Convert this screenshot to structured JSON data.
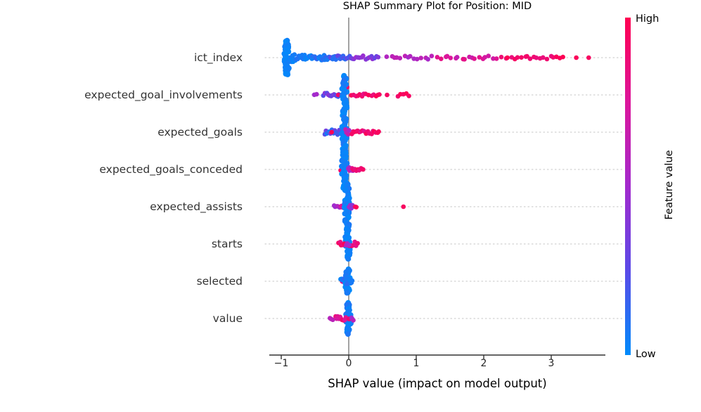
{
  "chart_data": {
    "type": "beeswarm",
    "title": "SHAP Summary Plot for Position: MID",
    "xlabel": "SHAP value (impact on model output)",
    "x_ticks": [
      {
        "value": -1,
        "label": "−1"
      },
      {
        "value": 0,
        "label": "0"
      },
      {
        "value": 1,
        "label": "1"
      },
      {
        "value": 2,
        "label": "2"
      },
      {
        "value": 3,
        "label": "3"
      }
    ],
    "x_range": [
      -1.18,
      3.8
    ],
    "zero_line": 0,
    "grid": "dotted-horizontal",
    "colorbar": {
      "label": "Feature value",
      "high": "High",
      "low": "Low",
      "color_low": "#008bfb",
      "color_high": "#ff0051",
      "stops": [
        {
          "t": 0,
          "c": "#008bfb"
        },
        {
          "t": 0.25,
          "c": "#5a4ae8"
        },
        {
          "t": 0.5,
          "c": "#a32acd"
        },
        {
          "t": 0.75,
          "c": "#dc169b"
        },
        {
          "t": 1,
          "c": "#ff0051"
        }
      ]
    },
    "features": [
      {
        "name": "ict_index",
        "swarm": [
          {
            "x0": -0.94,
            "x1": -0.9,
            "n": 34,
            "v0": 0,
            "v1": 0.05,
            "jy": 24,
            "stack": true
          },
          {
            "x0": -0.91,
            "x1": -0.78,
            "n": 13,
            "v0": 0,
            "v1": 0.07,
            "jy": 8
          },
          {
            "x0": -0.78,
            "x1": -0.55,
            "n": 14,
            "v0": 0,
            "v1": 0.1,
            "jy": 4
          },
          {
            "x0": -0.55,
            "x1": -0.28,
            "n": 20,
            "v0": 0.02,
            "v1": 0.16,
            "jy": 3.5
          },
          {
            "x0": -0.28,
            "x1": 0.02,
            "n": 18,
            "v0": 0.08,
            "v1": 0.3,
            "jy": 3
          },
          {
            "x0": 0.02,
            "x1": 0.45,
            "n": 16,
            "v0": 0.28,
            "v1": 0.5,
            "jy": 3
          },
          {
            "x0": 0.55,
            "x1": 1.25,
            "n": 14,
            "v0": 0.45,
            "v1": 0.62,
            "jy": 2.5
          },
          {
            "x0": 1.3,
            "x1": 2.2,
            "n": 18,
            "v0": 0.62,
            "v1": 0.85,
            "jy": 2.5
          },
          {
            "x0": 2.25,
            "x1": 3.2,
            "n": 20,
            "v0": 0.85,
            "v1": 1,
            "jy": 2.5
          },
          {
            "x0": 3.35,
            "x1": 3.38,
            "n": 1,
            "v0": 0.93,
            "v1": 1,
            "jy": 0
          },
          {
            "x0": 3.55,
            "x1": 3.58,
            "n": 1,
            "v0": 0.93,
            "v1": 1,
            "jy": 0
          }
        ]
      },
      {
        "name": "expected_goal_involvements",
        "swarm": [
          {
            "x0": -0.52,
            "x1": -0.46,
            "n": 2,
            "v0": 0.45,
            "v1": 0.55,
            "jy": 1
          },
          {
            "x0": -0.38,
            "x1": -0.13,
            "n": 12,
            "v0": 0.1,
            "v1": 0.45,
            "jy": 3
          },
          {
            "x0": -0.16,
            "x1": -0.13,
            "n": 1,
            "v0": 0.9,
            "v1": 1,
            "jy": 1
          },
          {
            "x0": -0.08,
            "x1": -0.02,
            "n": 6,
            "v0": 0.8,
            "v1": 1,
            "jy": 12
          },
          {
            "x0": -0.1,
            "x1": -0.02,
            "n": 30,
            "v0": 0,
            "v1": 0.1,
            "jy": 28,
            "stack": true
          },
          {
            "x0": 0.02,
            "x1": 0.3,
            "n": 9,
            "v0": 0.8,
            "v1": 1,
            "jy": 2.5
          },
          {
            "x0": 0.33,
            "x1": 0.47,
            "n": 5,
            "v0": 0.85,
            "v1": 1,
            "jy": 2
          },
          {
            "x0": 0.55,
            "x1": 0.57,
            "n": 1,
            "v0": 0.9,
            "v1": 1,
            "jy": 0
          },
          {
            "x0": 0.72,
            "x1": 0.92,
            "n": 5,
            "v0": 0.9,
            "v1": 1,
            "jy": 2
          }
        ]
      },
      {
        "name": "expected_goals",
        "swarm": [
          {
            "x0": -0.36,
            "x1": -0.13,
            "n": 14,
            "v0": 0.05,
            "v1": 0.35,
            "jy": 3.5
          },
          {
            "x0": -0.26,
            "x1": -0.24,
            "n": 1,
            "v0": 0.9,
            "v1": 1,
            "jy": 0
          },
          {
            "x0": -0.1,
            "x1": -0.03,
            "n": 30,
            "v0": 0,
            "v1": 0.08,
            "jy": 30,
            "stack": true
          },
          {
            "x0": -0.06,
            "x1": 0.02,
            "n": 4,
            "v0": 0.5,
            "v1": 0.7,
            "jy": 4
          },
          {
            "x0": 0.03,
            "x1": 0.26,
            "n": 10,
            "v0": 0.8,
            "v1": 1,
            "jy": 2.5
          },
          {
            "x0": 0.28,
            "x1": 0.46,
            "n": 8,
            "v0": 0.85,
            "v1": 1,
            "jy": 2.5
          }
        ]
      },
      {
        "name": "expected_goals_conceded",
        "swarm": [
          {
            "x0": -0.13,
            "x1": -0.1,
            "n": 2,
            "v0": 0.85,
            "v1": 1,
            "jy": 1.5
          },
          {
            "x0": -0.09,
            "x1": -0.04,
            "n": 30,
            "v0": 0,
            "v1": 0.06,
            "jy": 27,
            "stack": true
          },
          {
            "x0": -0.02,
            "x1": 0.07,
            "n": 6,
            "v0": 0.5,
            "v1": 0.7,
            "jy": 3
          },
          {
            "x0": 0.04,
            "x1": 0.23,
            "n": 9,
            "v0": 0.8,
            "v1": 1,
            "jy": 2.5
          }
        ]
      },
      {
        "name": "expected_assists",
        "swarm": [
          {
            "x0": -0.23,
            "x1": -0.13,
            "n": 5,
            "v0": 0.45,
            "v1": 0.6,
            "jy": 2
          },
          {
            "x0": -0.13,
            "x1": -0.07,
            "n": 4,
            "v0": 0.7,
            "v1": 0.9,
            "jy": 2
          },
          {
            "x0": -0.05,
            "x1": 0.0,
            "n": 34,
            "v0": 0,
            "v1": 0.08,
            "jy": 32,
            "stack": true
          },
          {
            "x0": 0.0,
            "x1": 0.06,
            "n": 6,
            "v0": 0.3,
            "v1": 0.55,
            "jy": 3
          },
          {
            "x0": 0.09,
            "x1": 0.12,
            "n": 2,
            "v0": 0.85,
            "v1": 1,
            "jy": 1.5
          },
          {
            "x0": 0.8,
            "x1": 0.82,
            "n": 1,
            "v0": 0.95,
            "v1": 1,
            "jy": 0
          }
        ]
      },
      {
        "name": "starts",
        "swarm": [
          {
            "x0": -0.04,
            "x1": 0.0,
            "n": 30,
            "v0": 0,
            "v1": 0.06,
            "jy": 21,
            "stack": true
          },
          {
            "x0": -0.02,
            "x1": 0.0,
            "n": 1,
            "v0": 0,
            "v1": 0.05,
            "jy": 27
          },
          {
            "x0": -0.16,
            "x1": 0.14,
            "n": 14,
            "v0": 0.75,
            "v1": 1,
            "jy": 3
          },
          {
            "x0": -0.06,
            "x1": 0.02,
            "n": 3,
            "v0": 0.4,
            "v1": 0.6,
            "jy": 3
          }
        ]
      },
      {
        "name": "selected",
        "swarm": [
          {
            "x0": -0.11,
            "x1": -0.08,
            "n": 2,
            "v0": 0.8,
            "v1": 0.95,
            "jy": 2
          },
          {
            "x0": 0.0,
            "x1": 0.04,
            "n": 2,
            "v0": 0.8,
            "v1": 0.95,
            "jy": 2
          },
          {
            "x0": -0.03,
            "x1": 0.0,
            "n": 22,
            "v0": 0,
            "v1": 0.08,
            "jy": 17,
            "stack": true
          },
          {
            "x0": -0.13,
            "x1": 0.06,
            "n": 14,
            "v0": 0,
            "v1": 0.15,
            "jy": 4
          }
        ]
      },
      {
        "name": "value",
        "swarm": [
          {
            "x0": -0.3,
            "x1": -0.22,
            "n": 3,
            "v0": 0.45,
            "v1": 0.6,
            "jy": 2
          },
          {
            "x0": -0.02,
            "x1": 0.01,
            "n": 26,
            "v0": 0,
            "v1": 0.1,
            "jy": 22,
            "stack": true
          },
          {
            "x0": -0.2,
            "x1": -0.04,
            "n": 10,
            "v0": 0.7,
            "v1": 0.95,
            "jy": 3
          },
          {
            "x0": 0.0,
            "x1": 0.02,
            "n": 2,
            "v0": 0.85,
            "v1": 1,
            "jy": 2
          },
          {
            "x0": 0.03,
            "x1": 0.07,
            "n": 3,
            "v0": 0.45,
            "v1": 0.6,
            "jy": 3
          }
        ]
      }
    ]
  }
}
